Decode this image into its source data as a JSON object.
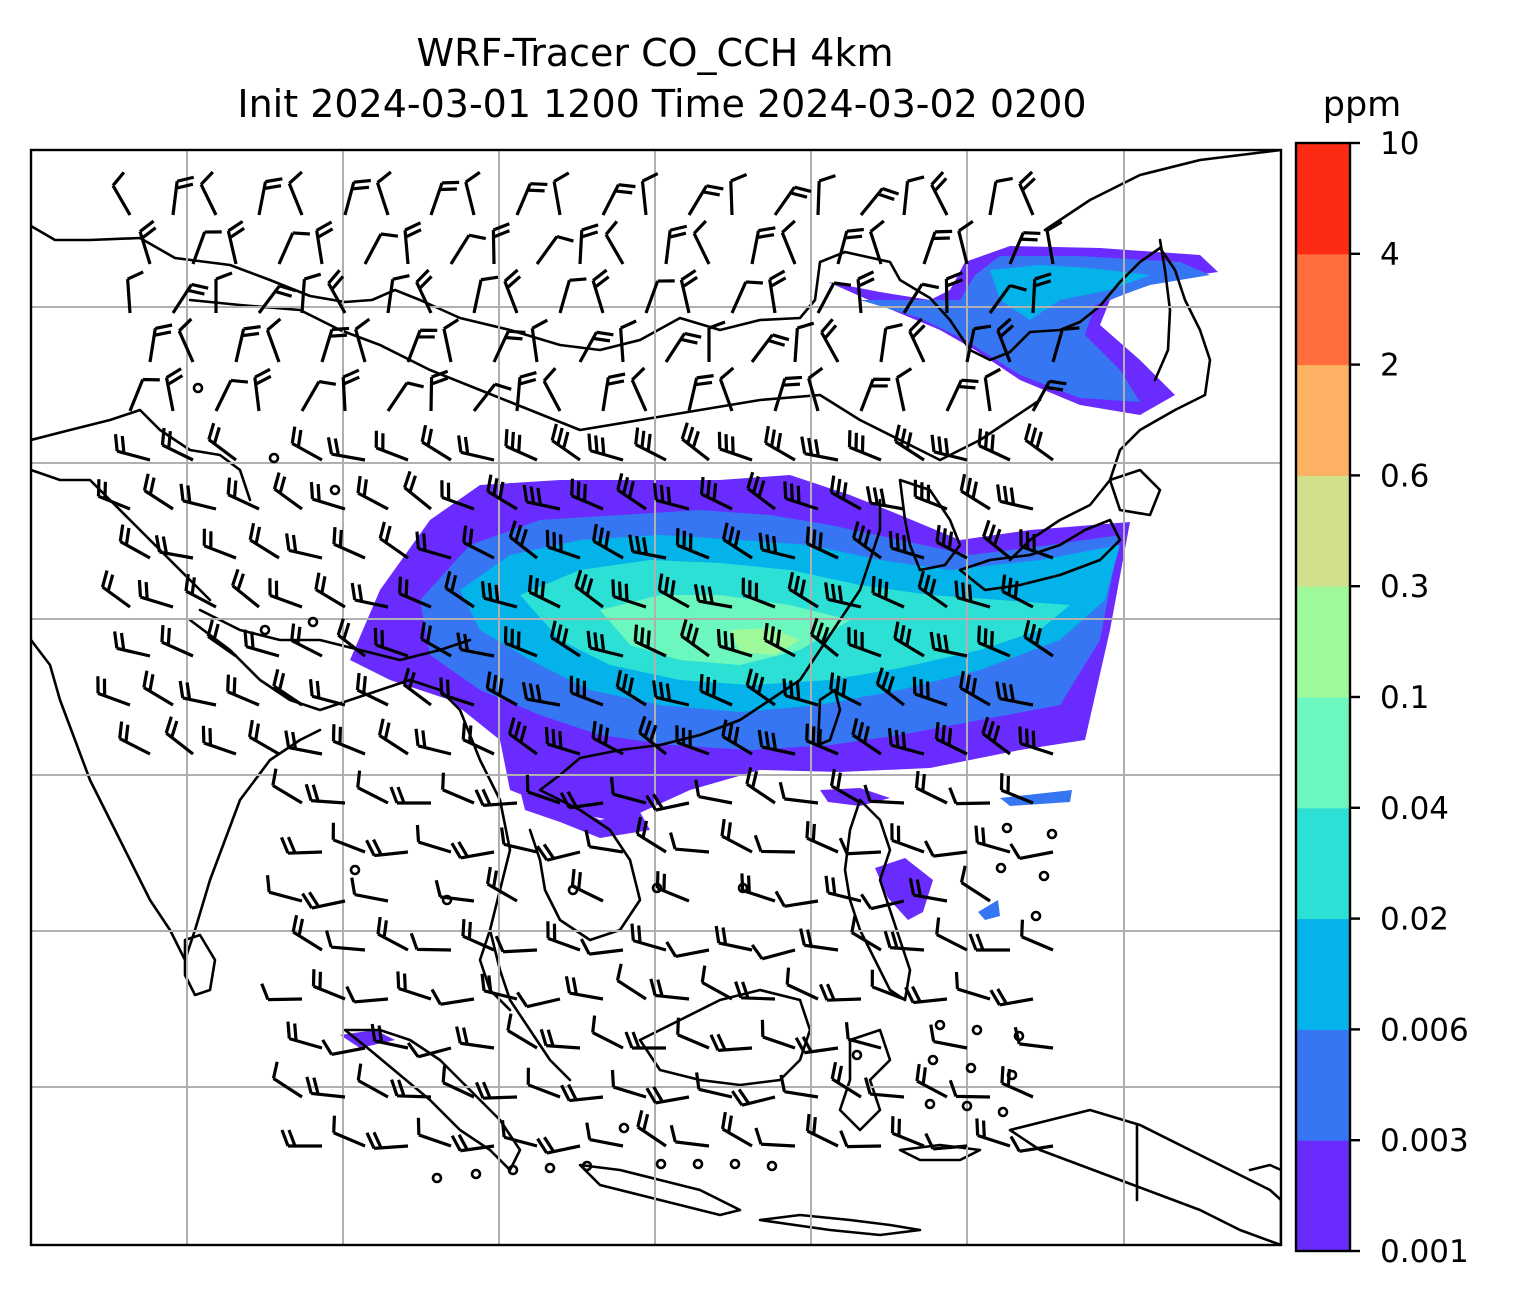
{
  "figure": {
    "title_line1": "WRF-Tracer CO_CCH 4km",
    "title_line2": "Init 2024-03-01 1200 Time 2024-03-02 0200"
  },
  "colorbar": {
    "unit": "ppm",
    "levels": [
      "0.001",
      "0.003",
      "0.006",
      "0.02",
      "0.04",
      "0.1",
      "0.3",
      "0.6",
      "2",
      "4",
      "10"
    ],
    "colors": [
      "#6a2bff",
      "#3676f2",
      "#03b3ea",
      "#2de0d6",
      "#6cf7be",
      "#9ef99a",
      "#d1e08a",
      "#fdb263",
      "#fe6d3b",
      "#fe2b14"
    ]
  },
  "map": {
    "grid": true,
    "vector_symbol": "wind-barb",
    "plume_colors": {
      "outer": "#6a2bff",
      "band2": "#3676f2",
      "band3": "#03b3ea",
      "band4": "#2de0d6",
      "core": "#6cf7be",
      "peak": "#9ef99a"
    }
  }
}
